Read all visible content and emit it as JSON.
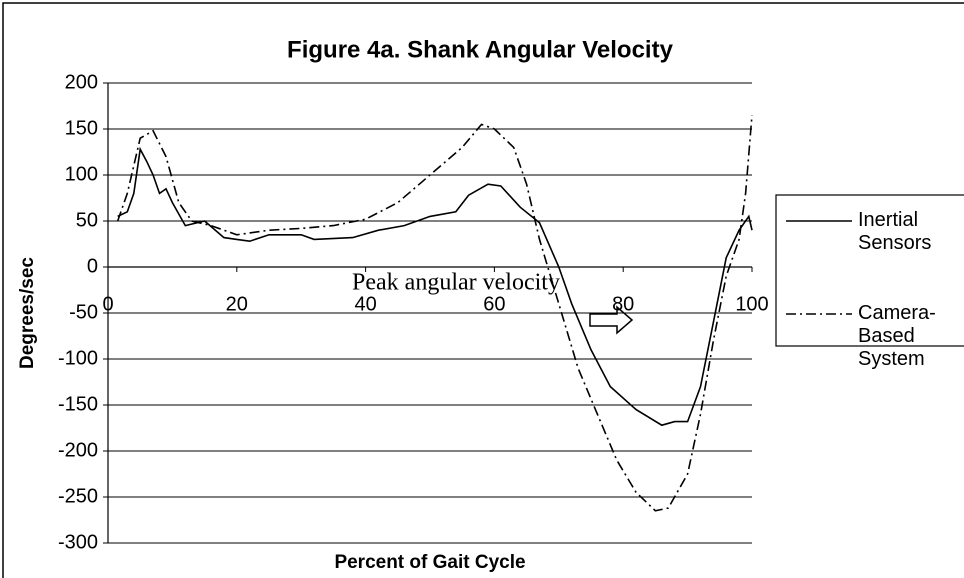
{
  "chart_data": {
    "type": "line",
    "title": "Figure 4a.  Shank Angular Velocity",
    "xlabel": "Percent of Gait Cycle",
    "ylabel": "Degrees/sec",
    "xlim": [
      0,
      100
    ],
    "xticks": [
      0,
      20,
      40,
      60,
      80,
      100
    ],
    "ylim": [
      -300,
      200
    ],
    "yticks": [
      -300,
      -250,
      -200,
      -150,
      -100,
      -50,
      0,
      50,
      100,
      150,
      200
    ],
    "grid": true,
    "legend": "right",
    "annotation": "Peak angular velocity",
    "series": [
      {
        "name": "Inertial Sensors",
        "color": "#000000",
        "style": "solid",
        "x": [
          1.5,
          3,
          4,
          5,
          6,
          7,
          8,
          9,
          10,
          12,
          15,
          18,
          20,
          22,
          25,
          30,
          32,
          38,
          42,
          46,
          50,
          54,
          56,
          59,
          61,
          64,
          67,
          70,
          72,
          75,
          78,
          82,
          86,
          88,
          90,
          92,
          94,
          96,
          98,
          99.5,
          100
        ],
        "values": [
          55,
          60,
          80,
          128,
          115,
          100,
          80,
          85,
          70,
          45,
          50,
          32,
          30,
          28,
          35,
          35,
          30,
          32,
          40,
          45,
          55,
          60,
          78,
          90,
          88,
          65,
          48,
          0,
          -40,
          -90,
          -130,
          -155,
          -172,
          -168,
          -168,
          -130,
          -60,
          10,
          40,
          55,
          40
        ]
      },
      {
        "name": "Camera-Based System",
        "color": "#000000",
        "style": "dashdot",
        "x": [
          1.5,
          3,
          5,
          7,
          9,
          11,
          13,
          16,
          20,
          25,
          30,
          35,
          40,
          45,
          50,
          55,
          58,
          60,
          63,
          65,
          67,
          70,
          73,
          76,
          79,
          82,
          85,
          87,
          90,
          92,
          94,
          96,
          98,
          99,
          100
        ],
        "values": [
          50,
          80,
          140,
          148,
          120,
          70,
          50,
          45,
          35,
          40,
          42,
          45,
          52,
          70,
          100,
          130,
          155,
          150,
          130,
          90,
          30,
          -40,
          -110,
          -160,
          -210,
          -245,
          -265,
          -262,
          -225,
          -160,
          -80,
          -10,
          30,
          80,
          165
        ]
      }
    ]
  }
}
